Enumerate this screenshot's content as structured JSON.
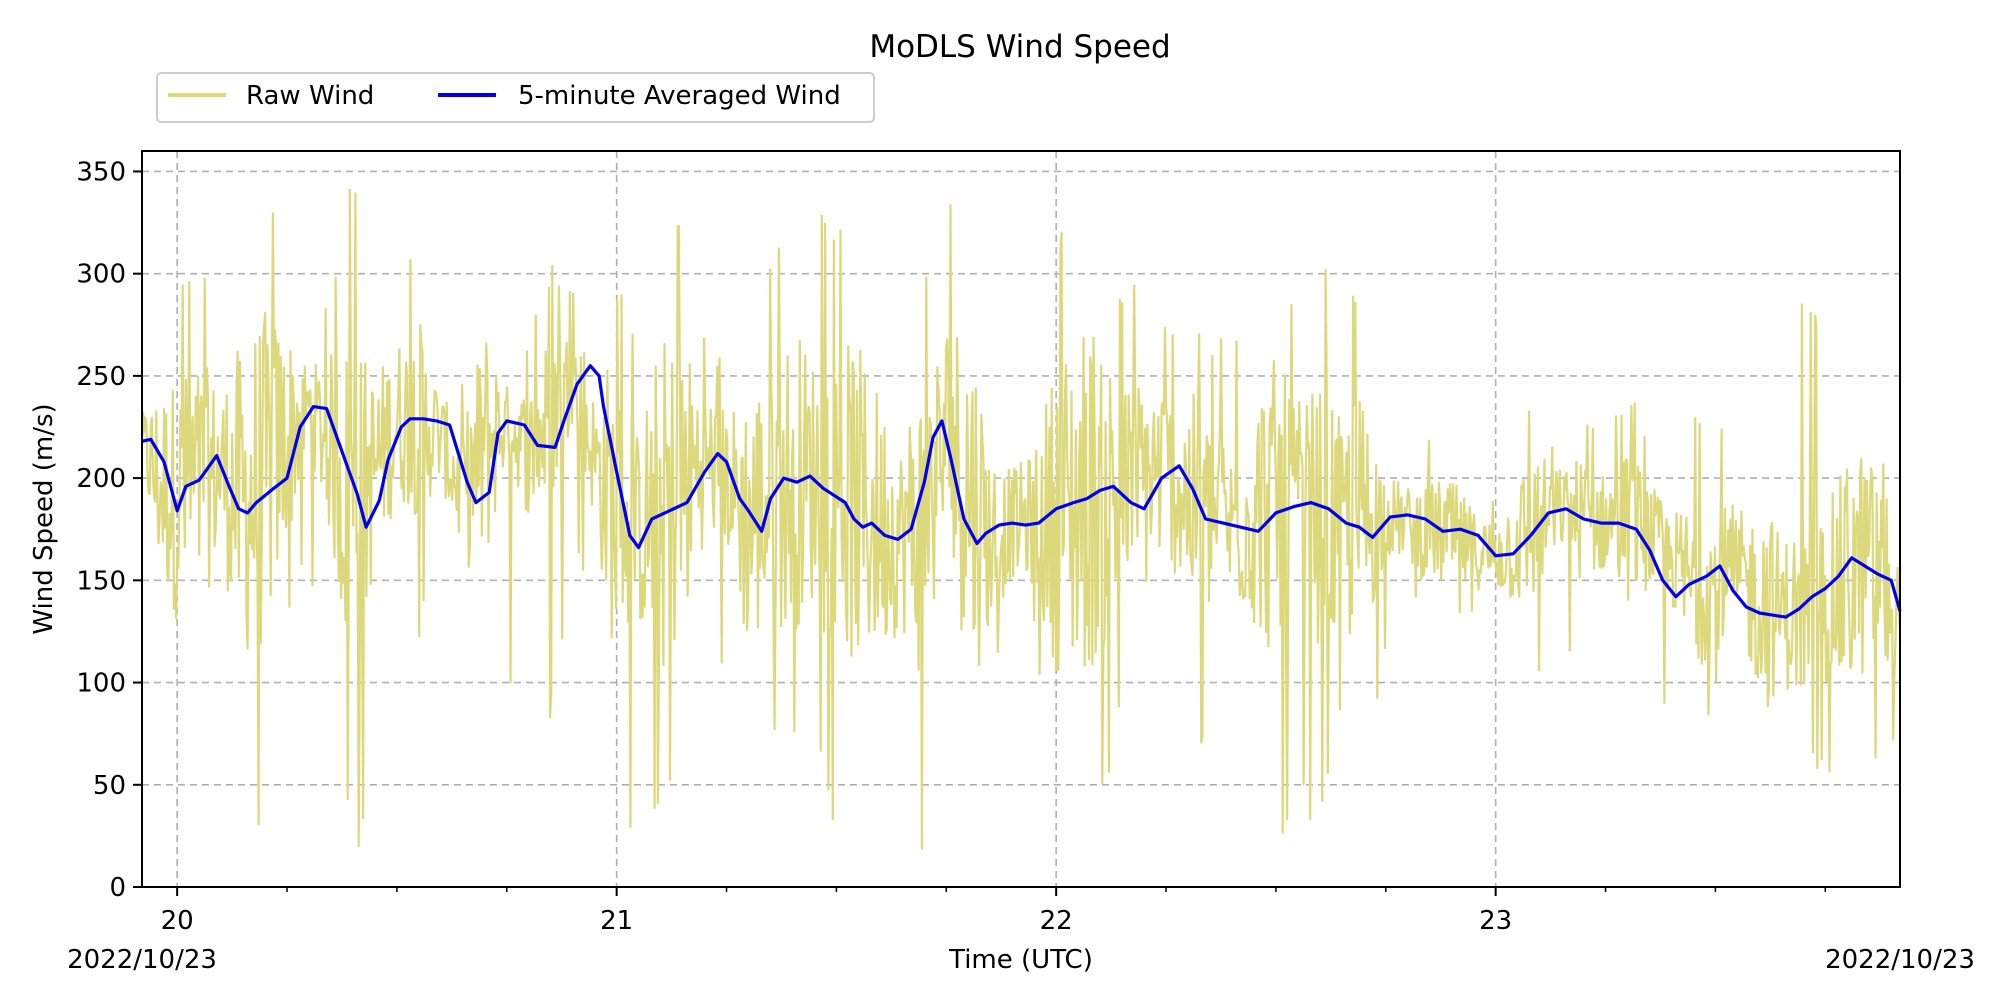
{
  "chart_data": {
    "type": "line",
    "title": "MoDLS Wind Speed",
    "xlabel": "Time (UTC)",
    "ylabel": "Wind Speed (m/s)",
    "xlim": [
      19.92,
      23.92
    ],
    "ylim": [
      0,
      360
    ],
    "x_date_labels": {
      "left": "2022/10/23",
      "right": "2022/10/23"
    },
    "x_ticks": [
      {
        "value": 20,
        "label": "20"
      },
      {
        "value": 21,
        "label": "21"
      },
      {
        "value": 22,
        "label": "22"
      },
      {
        "value": 23,
        "label": "23"
      }
    ],
    "y_ticks": [
      {
        "value": 0,
        "label": "0"
      },
      {
        "value": 50,
        "label": "50"
      },
      {
        "value": 100,
        "label": "100"
      },
      {
        "value": 150,
        "label": "150"
      },
      {
        "value": 200,
        "label": "200"
      },
      {
        "value": 250,
        "label": "250"
      },
      {
        "value": 300,
        "label": "300"
      },
      {
        "value": 350,
        "label": "350"
      }
    ],
    "grid": true,
    "legend_position": "top-left",
    "series": [
      {
        "name": "Raw Wind",
        "color": "#dcd87c",
        "style": "high-frequency raw signal",
        "x": [
          19.92,
          19.95,
          20.0,
          20.05,
          20.1,
          20.15,
          20.2,
          20.25,
          20.3,
          20.35,
          20.4,
          20.45,
          20.5,
          20.55,
          20.6,
          20.65,
          20.7,
          20.75,
          20.8,
          20.85,
          20.9,
          20.95,
          21.0,
          21.05,
          21.1,
          21.15,
          21.2,
          21.25,
          21.3,
          21.35,
          21.4,
          21.45,
          21.5,
          21.55,
          21.6,
          21.65,
          21.7,
          21.75,
          21.8,
          21.85,
          21.9,
          21.95,
          22.0,
          22.05,
          22.1,
          22.15,
          22.2,
          22.25,
          22.3,
          22.35,
          22.4,
          22.45,
          22.5,
          22.55,
          22.6,
          22.65,
          22.7,
          22.75,
          22.8,
          22.85,
          22.9,
          22.95,
          23.0,
          23.05,
          23.1,
          23.15,
          23.2,
          23.25,
          23.3,
          23.35,
          23.4,
          23.45,
          23.5,
          23.55,
          23.6,
          23.65,
          23.7,
          23.75,
          23.8,
          23.85,
          23.9,
          23.92
        ],
        "min": [
          70,
          80,
          10,
          10,
          30,
          60,
          10,
          130,
          150,
          120,
          5,
          60,
          20,
          120,
          160,
          140,
          15,
          110,
          40,
          80,
          150,
          160,
          10,
          20,
          30,
          60,
          100,
          110,
          5,
          80,
          60,
          90,
          5,
          40,
          60,
          90,
          5,
          20,
          5,
          90,
          130,
          120,
          10,
          20,
          30,
          90,
          100,
          5,
          80,
          60,
          110,
          80,
          5,
          50,
          20,
          90,
          30,
          120,
          130,
          130,
          120,
          130,
          130,
          110,
          100,
          110,
          120,
          130,
          110,
          90,
          80,
          70,
          90,
          80,
          30,
          70,
          50,
          60,
          40,
          60,
          40,
          120
        ],
        "max": [
          240,
          280,
          300,
          310,
          280,
          340,
          350,
          320,
          270,
          300,
          350,
          290,
          300,
          320,
          260,
          250,
          330,
          260,
          270,
          310,
          290,
          340,
          300,
          260,
          340,
          330,
          280,
          260,
          300,
          310,
          340,
          350,
          320,
          340,
          360,
          340,
          300,
          330,
          350,
          290,
          270,
          250,
          320,
          350,
          350,
          290,
          300,
          280,
          290,
          270,
          270,
          300,
          320,
          280,
          300,
          310,
          290,
          220,
          210,
          230,
          220,
          210,
          200,
          250,
          240,
          220,
          240,
          220,
          250,
          220,
          200,
          230,
          240,
          210,
          220,
          280,
          300,
          280,
          340,
          240,
          330,
          160
        ],
        "values": [
          220,
          200,
          190,
          195,
          205,
          185,
          200,
          220,
          235,
          215,
          180,
          205,
          228,
          230,
          220,
          190,
          215,
          228,
          212,
          230,
          250,
          210,
          180,
          175,
          185,
          195,
          210,
          200,
          178,
          190,
          200,
          200,
          195,
          185,
          178,
          172,
          178,
          220,
          195,
          170,
          178,
          180,
          182,
          188,
          195,
          190,
          198,
          205,
          190,
          180,
          176,
          182,
          186,
          185,
          182,
          176,
          180,
          182,
          178,
          174,
          172,
          165,
          162,
          168,
          178,
          185,
          180,
          178,
          178,
          172,
          160,
          145,
          150,
          152,
          140,
          135,
          133,
          140,
          150,
          162,
          150,
          135
        ]
      },
      {
        "name": "5-minute Averaged Wind",
        "color": "#0000ee",
        "x": [
          19.92,
          19.94,
          19.97,
          20.0,
          20.02,
          20.05,
          20.07,
          20.09,
          20.12,
          20.14,
          20.16,
          20.18,
          20.22,
          20.25,
          20.28,
          20.31,
          20.34,
          20.36,
          20.38,
          20.41,
          20.43,
          20.46,
          20.48,
          20.51,
          20.53,
          20.56,
          20.59,
          20.62,
          20.66,
          20.68,
          20.71,
          20.73,
          20.75,
          20.77,
          20.79,
          20.82,
          20.86,
          20.88,
          20.91,
          20.94,
          20.96,
          20.97,
          21.0,
          21.03,
          21.05,
          21.08,
          21.12,
          21.16,
          21.2,
          21.23,
          21.25,
          21.28,
          21.3,
          21.33,
          21.35,
          21.38,
          21.41,
          21.44,
          21.47,
          21.52,
          21.54,
          21.56,
          21.58,
          21.61,
          21.64,
          21.67,
          21.7,
          21.72,
          21.74,
          21.76,
          21.79,
          21.82,
          21.84,
          21.87,
          21.9,
          21.93,
          21.96,
          22.0,
          22.04,
          22.07,
          22.1,
          22.13,
          22.17,
          22.2,
          22.24,
          22.28,
          22.31,
          22.34,
          22.38,
          22.42,
          22.46,
          22.5,
          22.54,
          22.58,
          22.62,
          22.66,
          22.69,
          22.72,
          22.76,
          22.8,
          22.84,
          22.88,
          22.92,
          22.96,
          23.0,
          23.04,
          23.08,
          23.12,
          23.16,
          23.2,
          23.24,
          23.28,
          23.32,
          23.35,
          23.38,
          23.41,
          23.44,
          23.48,
          23.51,
          23.54,
          23.57,
          23.6,
          23.63,
          23.66,
          23.69,
          23.72,
          23.75,
          23.78,
          23.81,
          23.84,
          23.87,
          23.9,
          23.92
        ],
        "values": [
          218,
          219,
          208,
          184,
          196,
          199,
          205,
          211,
          195,
          185,
          183,
          188,
          195,
          200,
          225,
          235,
          234,
          222,
          210,
          192,
          176,
          189,
          209,
          225,
          229,
          229,
          228,
          226,
          198,
          188,
          193,
          222,
          228,
          227,
          226,
          216,
          215,
          228,
          246,
          255,
          250,
          235,
          203,
          172,
          166,
          180,
          184,
          188,
          203,
          212,
          208,
          190,
          184,
          174,
          190,
          200,
          198,
          201,
          195,
          188,
          180,
          176,
          178,
          172,
          170,
          175,
          198,
          220,
          228,
          210,
          180,
          168,
          173,
          177,
          178,
          177,
          178,
          185,
          188,
          190,
          194,
          196,
          188,
          185,
          200,
          206,
          195,
          180,
          178,
          176,
          174,
          183,
          186,
          188,
          185,
          178,
          176,
          171,
          181,
          182,
          180,
          174,
          175,
          172,
          162,
          163,
          172,
          183,
          185,
          180,
          178,
          178,
          175,
          165,
          150,
          142,
          148,
          152,
          157,
          145,
          137,
          134,
          133,
          132,
          136,
          142,
          146,
          152,
          161,
          157,
          153,
          150,
          135
        ]
      }
    ]
  }
}
